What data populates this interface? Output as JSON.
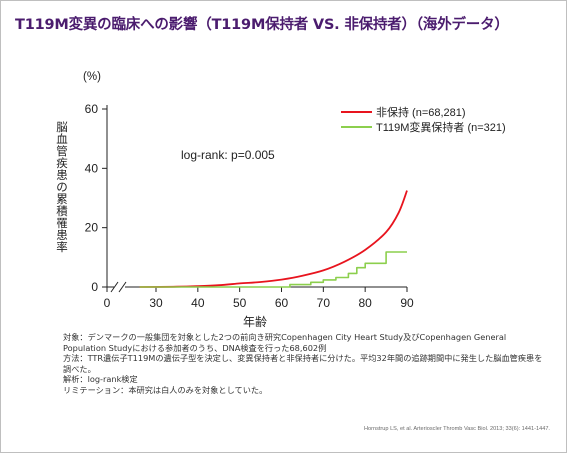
{
  "slide": {
    "title": "T119M変異の臨床への影響（T119M保持者 VS. 非保持者）（海外データ）",
    "notes": [
      "対象：デンマークの一般集団を対象とした2つの前向き研究Copenhagen City Heart Study及びCopenhagen General Population Studyにおける参加者のうち、DNA検査を行った68,602例",
      "方法：TTR遺伝子T119Mの遺伝子型を決定し、変異保持者と非保持者に分けた。平均32年間の追跡期間中に発生した脳血管疾患を調べた。",
      "解析：log-rank検定",
      "リミテーション：本研究は白人のみを対象としていた。"
    ],
    "citation": "Hornstrup LS, et al. Arterioscler Thromb Vasc Biol. 2013; 33(6): 1441-1447."
  },
  "chart_data": {
    "type": "line",
    "title": "",
    "xlabel": "年齢",
    "ylabel": "脳血管疾患の累積罹患率",
    "yunit": "(%)",
    "xlim": [
      0,
      90
    ],
    "ylim": [
      0,
      60
    ],
    "x_ticks": [
      0,
      30,
      40,
      50,
      60,
      70,
      80,
      90
    ],
    "y_ticks": [
      0,
      20,
      40,
      60
    ],
    "axis_break": true,
    "annotation": "log-rank: p=0.005",
    "legend_position": "top-right",
    "series": [
      {
        "name": "非保持 (n=68,281)",
        "color": "#e8141e",
        "step": false,
        "points": [
          [
            20,
            0
          ],
          [
            35,
            0.1
          ],
          [
            40,
            0.3
          ],
          [
            45,
            0.6
          ],
          [
            50,
            1.2
          ],
          [
            55,
            1.7
          ],
          [
            60,
            2.5
          ],
          [
            65,
            3.8
          ],
          [
            70,
            5.6
          ],
          [
            75,
            8.5
          ],
          [
            80,
            12.5
          ],
          [
            85,
            18.5
          ],
          [
            88,
            25
          ],
          [
            90,
            32.5
          ]
        ]
      },
      {
        "name": "T119M変異保持者 (n=321)",
        "color": "#8ccf4d",
        "step": true,
        "points": [
          [
            20,
            0
          ],
          [
            62,
            0
          ],
          [
            62,
            0.8
          ],
          [
            67,
            0.8
          ],
          [
            67,
            1.6
          ],
          [
            70,
            1.6
          ],
          [
            70,
            2.4
          ],
          [
            73,
            2.4
          ],
          [
            73,
            3.2
          ],
          [
            76,
            3.2
          ],
          [
            76,
            4.6
          ],
          [
            78,
            4.6
          ],
          [
            78,
            6.5
          ],
          [
            80,
            6.5
          ],
          [
            80,
            8
          ],
          [
            85,
            8
          ],
          [
            85,
            11.8
          ],
          [
            90,
            11.8
          ]
        ]
      }
    ]
  }
}
